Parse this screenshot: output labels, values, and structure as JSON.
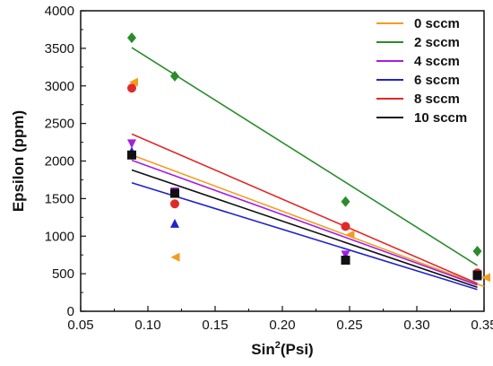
{
  "chart_data": {
    "type": "scatter",
    "xlabel": {
      "base": "Sin",
      "sup": "2",
      "rest": "(Psi)"
    },
    "ylabel": "Epsilon (ppm)",
    "xlim": [
      0.05,
      0.35
    ],
    "ylim": [
      0,
      4000
    ],
    "x_ticks": [
      0.05,
      0.1,
      0.15,
      0.2,
      0.25,
      0.3,
      0.35
    ],
    "x_tick_labels": [
      "0.05",
      "0.10",
      "0.15",
      "0.20",
      "0.25",
      "0.30",
      "0.35"
    ],
    "y_ticks": [
      0,
      500,
      1000,
      1500,
      2000,
      2500,
      3000,
      3500,
      4000
    ],
    "y_tick_labels": [
      "0",
      "500",
      "1000",
      "1500",
      "2000",
      "2500",
      "3000",
      "3500",
      "4000"
    ],
    "grid": false,
    "legend_position": "top-right",
    "series": [
      {
        "name": "0 sccm",
        "color": "#f39c1f",
        "marker": "triangle-left",
        "points": [
          [
            0.09,
            3050
          ],
          [
            0.121,
            720
          ],
          [
            0.251,
            1020
          ],
          [
            0.352,
            450
          ]
        ],
        "fit": [
          [
            0.088,
            2080
          ],
          [
            0.35,
            330
          ]
        ]
      },
      {
        "name": "2 sccm",
        "color": "#2a8c2a",
        "marker": "diamond",
        "points": [
          [
            0.088,
            3640
          ],
          [
            0.12,
            3130
          ],
          [
            0.247,
            1460
          ],
          [
            0.345,
            800
          ]
        ],
        "fit": [
          [
            0.088,
            3510
          ],
          [
            0.345,
            610
          ]
        ]
      },
      {
        "name": "4 sccm",
        "color": "#a61ee0",
        "marker": "triangle-down",
        "points": [
          [
            0.088,
            2240
          ],
          [
            0.12,
            1600
          ],
          [
            0.247,
            760
          ],
          [
            0.345,
            500
          ]
        ],
        "fit": [
          [
            0.088,
            2010
          ],
          [
            0.345,
            350
          ]
        ]
      },
      {
        "name": "6 sccm",
        "color": "#1f24c8",
        "marker": "triangle-up",
        "points": [
          [
            0.088,
            2120
          ],
          [
            0.12,
            1160
          ],
          [
            0.247,
            690
          ],
          [
            0.345,
            460
          ]
        ],
        "fit": [
          [
            0.088,
            1710
          ],
          [
            0.345,
            290
          ]
        ]
      },
      {
        "name": "8 sccm",
        "color": "#e02a2a",
        "marker": "circle",
        "points": [
          [
            0.088,
            2970
          ],
          [
            0.12,
            1430
          ],
          [
            0.247,
            1130
          ],
          [
            0.345,
            510
          ]
        ],
        "fit": [
          [
            0.088,
            2360
          ],
          [
            0.345,
            370
          ]
        ]
      },
      {
        "name": "10 sccm",
        "color": "#111111",
        "marker": "square",
        "points": [
          [
            0.088,
            2080
          ],
          [
            0.12,
            1570
          ],
          [
            0.247,
            680
          ],
          [
            0.345,
            480
          ]
        ],
        "fit": [
          [
            0.088,
            1880
          ],
          [
            0.345,
            320
          ]
        ]
      }
    ]
  }
}
